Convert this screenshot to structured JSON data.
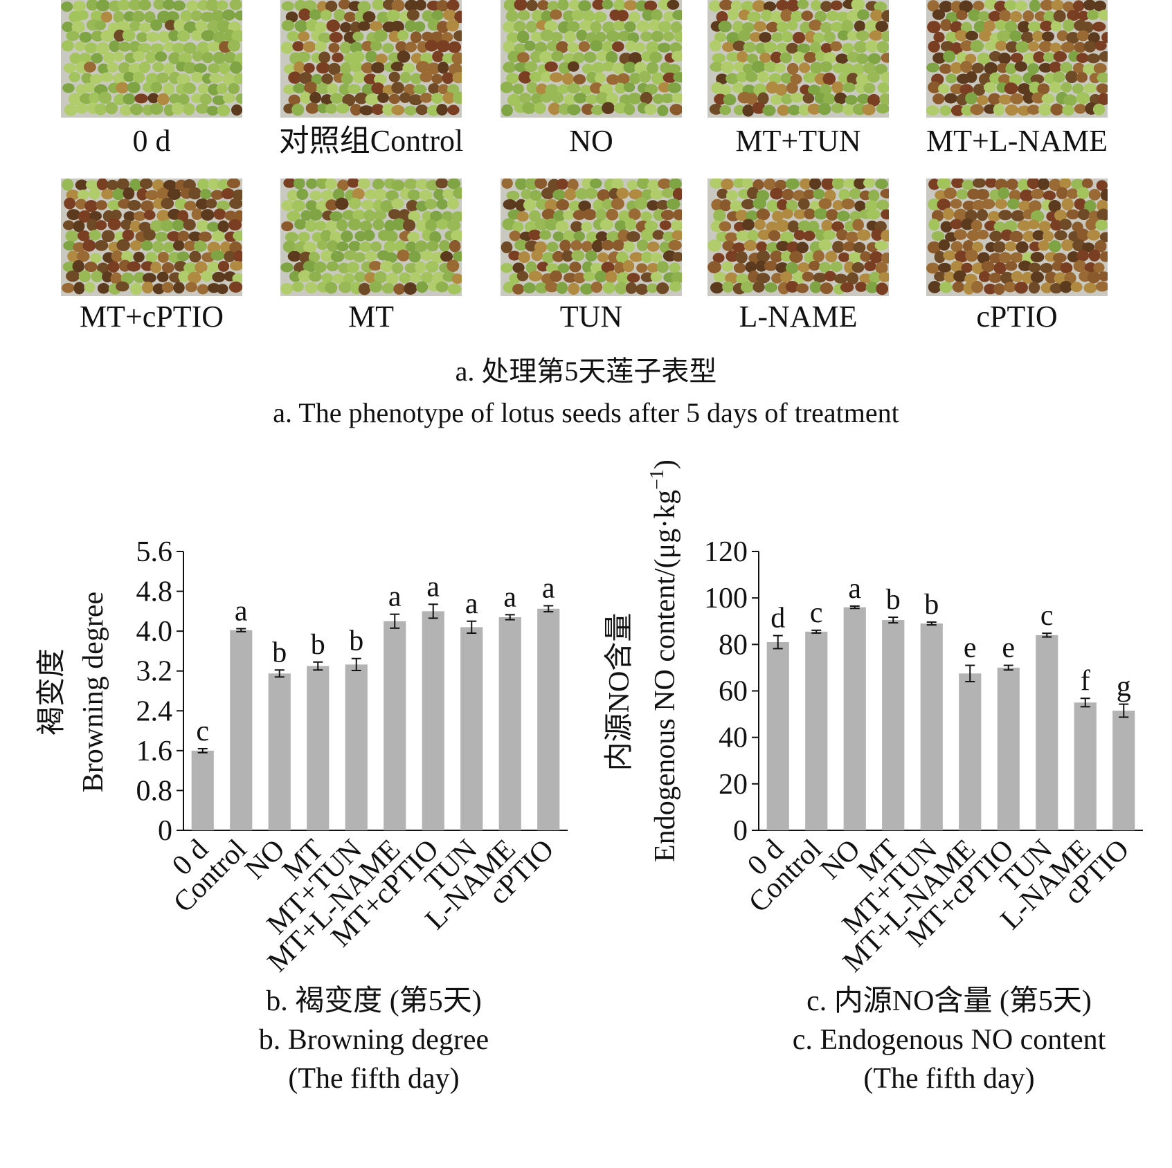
{
  "panel_a": {
    "photos": [
      {
        "label": "0 d",
        "brown": 0.05
      },
      {
        "label": "对照组Control",
        "brown": 0.55
      },
      {
        "label": "NO",
        "brown": 0.25
      },
      {
        "label": "MT+TUN",
        "brown": 0.3
      },
      {
        "label": "MT+L-NAME",
        "brown": 0.6
      },
      {
        "label": "MT+cPTIO",
        "brown": 0.75
      },
      {
        "label": "MT",
        "brown": 0.12
      },
      {
        "label": "TUN",
        "brown": 0.5
      },
      {
        "label": "L-NAME",
        "brown": 0.6
      },
      {
        "label": "cPTIO",
        "brown": 0.85
      }
    ],
    "caption_cn": "a. 处理第5天莲子表型",
    "caption_en": "a. The phenotype of lotus seeds after 5 days of treatment"
  },
  "panel_b": {
    "caption_cn": "b. 褐变度 (第5天)",
    "caption_en": "b. Browning degree",
    "caption_en2": "(The fifth day)"
  },
  "panel_c": {
    "caption_cn": "c. 内源NO含量 (第5天)",
    "caption_en": "c. Endogenous NO content",
    "caption_en2": "(The fifth day)"
  },
  "chart_data": [
    {
      "type": "bar",
      "categories": [
        "0 d",
        "Control",
        "NO",
        "MT",
        "MT+TUN",
        "MT+L-NAME",
        "MT+cPTIO",
        "TUN",
        "L-NAME",
        "cPTIO"
      ],
      "values": [
        1.6,
        4.02,
        3.15,
        3.3,
        3.33,
        4.2,
        4.4,
        4.08,
        4.28,
        4.45
      ],
      "errors": [
        0.04,
        0.03,
        0.07,
        0.08,
        0.12,
        0.14,
        0.14,
        0.12,
        0.05,
        0.06
      ],
      "letters": [
        "c",
        "a",
        "b",
        "b",
        "b",
        "a",
        "a",
        "a",
        "a",
        "a"
      ],
      "ylabel_cn": "褐变度",
      "ylabel_en": "Browning degree",
      "xlabel": "",
      "ylim": [
        0,
        5.6
      ],
      "yticks": [
        "0",
        "0.8",
        "1.6",
        "2.4",
        "3.2",
        "4.0",
        "4.8",
        "5.6"
      ],
      "bar_color": "#b3b3b3",
      "grid": false
    },
    {
      "type": "bar",
      "categories": [
        "0 d",
        "Control",
        "NO",
        "MT",
        "MT+TUN",
        "MT+L-NAME",
        "MT+cPTIO",
        "TUN",
        "L-NAME",
        "cPTIO"
      ],
      "values": [
        81,
        85.5,
        96,
        90.5,
        89,
        67.5,
        70,
        84,
        55,
        51.5
      ],
      "errors": [
        2.8,
        0.6,
        0.5,
        1.2,
        0.6,
        3.5,
        1.0,
        0.8,
        1.8,
        2.8
      ],
      "letters": [
        "d",
        "c",
        "a",
        "b",
        "b",
        "e",
        "e",
        "c",
        "f",
        "g"
      ],
      "ylabel_cn": "内源NO含量",
      "ylabel_en": "Endogenous NO content/(μg·kg",
      "ylabel_sup": "−1",
      "ylabel_close": ")",
      "xlabel": "",
      "ylim": [
        0,
        120
      ],
      "yticks": [
        "0",
        "20",
        "40",
        "60",
        "80",
        "100",
        "120"
      ],
      "bar_color": "#b3b3b3",
      "grid": false
    }
  ]
}
